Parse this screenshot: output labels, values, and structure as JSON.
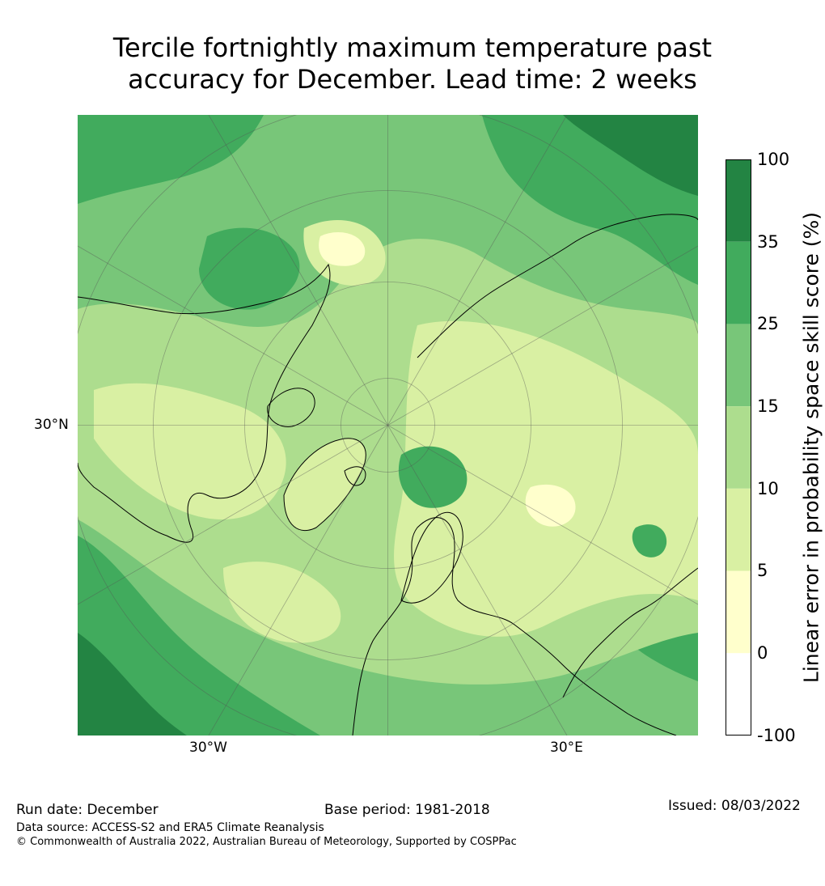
{
  "title": {
    "line1": "Tercile fortnightly maximum temperature past",
    "line2": "accuracy for December. Lead time: 2 weeks"
  },
  "map": {
    "projection": "north-polar-stereographic",
    "lat_label": "30°N",
    "lon_labels": [
      "30°W",
      "30°E"
    ]
  },
  "colorbar": {
    "label": "Linear error in probability space skill score (%)",
    "ticks": [
      "100",
      "35",
      "25",
      "15",
      "10",
      "5",
      "0",
      "-100"
    ],
    "colors": [
      "#238443",
      "#41ab5d",
      "#78c679",
      "#addd8e",
      "#d9f0a3",
      "#ffffcc",
      "#ffffff"
    ]
  },
  "footer": {
    "run_date": "Run date: December",
    "base_period": "Base period: 1981-2018",
    "issued": "Issued: 08/03/2022",
    "data_source": "Data source: ACCESS-S2 and ERA5 Climate Reanalysis",
    "copyright": "© Commonwealth of Australia 2022, Australian Bureau of Meteorology, Supported by COSPPac"
  }
}
